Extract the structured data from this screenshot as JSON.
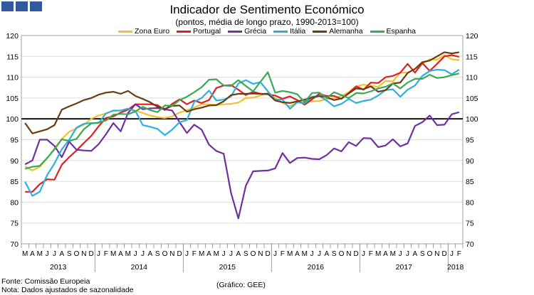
{
  "header": {
    "title": "Indicador de Sentimento Económico",
    "subtitle": "(pontos, média de longo prazo, 1990-2013=100)"
  },
  "footer": {
    "source": "Fonte: Comissão Europeia",
    "note": "Nota: Dados ajustados de sazonalidade",
    "credit": "(Gráfico: GEE)"
  },
  "chart_data": {
    "type": "line",
    "title": "Indicador de Sentimento Económico",
    "subtitle": "(pontos, média de longo prazo, 1990-2013=100)",
    "month_labels": [
      "M",
      "A",
      "M",
      "J",
      "J",
      "A",
      "S",
      "O",
      "N",
      "D",
      "J",
      "F",
      "M",
      "A",
      "M",
      "J",
      "J",
      "A",
      "S",
      "O",
      "N",
      "D",
      "J",
      "F",
      "M",
      "A",
      "M",
      "J",
      "J",
      "A",
      "S",
      "O",
      "N",
      "D",
      "J",
      "F",
      "M",
      "A",
      "M",
      "J",
      "J",
      "A",
      "S",
      "O",
      "N",
      "D",
      "J",
      "F",
      "M",
      "A",
      "M",
      "J",
      "J",
      "A",
      "S",
      "O",
      "N",
      "D",
      "J",
      "F"
    ],
    "year_labels": [
      {
        "label": "2013",
        "start": 0,
        "end": 9
      },
      {
        "label": "2014",
        "start": 10,
        "end": 21
      },
      {
        "label": "2015",
        "start": 22,
        "end": 33
      },
      {
        "label": "2016",
        "start": 34,
        "end": 45
      },
      {
        "label": "2017",
        "start": 46,
        "end": 57
      },
      {
        "label": "2018",
        "start": 58,
        "end": 59
      }
    ],
    "ylim": [
      70,
      120
    ],
    "yticks": [
      70,
      75,
      80,
      85,
      90,
      95,
      100,
      105,
      110,
      115,
      120
    ],
    "reference_line": 100,
    "legend_position": "top",
    "series": [
      {
        "name": "Zona Euro",
        "color": "#f2c12e",
        "values": [
          88.6,
          87.6,
          88.5,
          90.5,
          92.9,
          95.2,
          96.9,
          97.7,
          98.6,
          100.0,
          100.8,
          101.3,
          101.9,
          102.0,
          102.5,
          102.0,
          101.4,
          100.8,
          100.4,
          100.2,
          100.6,
          101.5,
          102.1,
          102.7,
          103.5,
          103.5,
          103.3,
          103.5,
          103.6,
          103.9,
          105.0,
          105.1,
          105.6,
          106.2,
          105.0,
          103.8,
          103.0,
          104.0,
          104.0,
          104.2,
          104.3,
          104.7,
          105.0,
          105.5,
          106.4,
          107.8,
          108.2,
          107.9,
          107.7,
          109.1,
          109.0,
          111.1,
          111.1,
          112.0,
          113.2,
          114.3,
          114.2,
          115.3,
          114.3,
          114.1
        ]
      },
      {
        "name": "Portugal",
        "color": "#e02020",
        "values": [
          82.5,
          82.5,
          84.3,
          85.5,
          85.4,
          89.0,
          90.8,
          92.4,
          94.2,
          95.9,
          98.2,
          100.2,
          100.6,
          101.5,
          102.2,
          103.5,
          103.5,
          103.5,
          103.3,
          102.1,
          103.6,
          104.7,
          103.5,
          104.4,
          103.8,
          104.5,
          107.4,
          108.0,
          108.1,
          107.0,
          105.7,
          106.5,
          106.0,
          105.9,
          105.6,
          104.8,
          105.4,
          104.5,
          103.4,
          104.7,
          106.0,
          105.5,
          105.5,
          104.8,
          106.2,
          107.8,
          107.0,
          108.7,
          108.6,
          110.0,
          110.3,
          111.1,
          113.2,
          111.1,
          113.4,
          111.5,
          113.2,
          115.0,
          115.3,
          114.9
        ]
      },
      {
        "name": "Grécia",
        "color": "#7030a0",
        "values": [
          89.1,
          90.0,
          95.0,
          95.0,
          93.5,
          90.8,
          94.5,
          92.6,
          92.4,
          92.3,
          93.9,
          96.3,
          99.0,
          97.0,
          101.4,
          103.5,
          102.3,
          102.5,
          102.6,
          102.3,
          102.0,
          99.2,
          96.6,
          98.6,
          97.4,
          93.8,
          92.3,
          91.6,
          82.2,
          76.1,
          83.9,
          87.4,
          87.5,
          87.6,
          88.1,
          91.8,
          89.4,
          90.6,
          90.7,
          90.4,
          90.3,
          91.3,
          92.9,
          92.2,
          94.4,
          93.5,
          95.4,
          95.3,
          93.2,
          93.6,
          95.1,
          93.4,
          94.1,
          98.3,
          99.2,
          100.8,
          98.5,
          98.6,
          101.1,
          101.6
        ]
      },
      {
        "name": "Itália",
        "color": "#2bb0e0",
        "values": [
          84.9,
          81.5,
          82.5,
          86.5,
          89.3,
          92.7,
          95.0,
          97.9,
          98.8,
          99.0,
          99.0,
          101.3,
          102.0,
          102.0,
          102.4,
          101.9,
          98.5,
          98.1,
          97.6,
          96.1,
          97.4,
          99.2,
          99.7,
          104.1,
          105.0,
          106.8,
          104.4,
          104.6,
          105.4,
          108.5,
          109.3,
          108.4,
          108.8,
          106.6,
          104.6,
          104.6,
          102.4,
          104.0,
          103.7,
          105.3,
          105.5,
          104.4,
          103.0,
          103.6,
          104.8,
          103.8,
          104.3,
          104.6,
          105.6,
          106.9,
          107.1,
          105.3,
          107.0,
          108.0,
          110.3,
          111.5,
          111.8,
          111.7,
          110.7,
          111.8
        ]
      },
      {
        "name": "Alemanha",
        "color": "#6b3b12",
        "values": [
          99.0,
          96.5,
          97.0,
          97.5,
          98.5,
          102.2,
          103.0,
          103.7,
          104.5,
          105.0,
          105.8,
          106.3,
          106.5,
          106.0,
          106.7,
          105.5,
          104.8,
          104.0,
          102.9,
          102.4,
          103.1,
          103.2,
          101.7,
          102.3,
          102.7,
          103.2,
          103.3,
          104.2,
          105.7,
          106.0,
          106.0,
          106.1,
          106.0,
          106.0,
          104.4,
          104.0,
          103.8,
          104.2,
          104.6,
          105.1,
          105.5,
          105.2,
          104.5,
          104.9,
          106.1,
          107.3,
          107.1,
          107.8,
          106.5,
          106.9,
          108.5,
          108.7,
          111.0,
          112.0,
          113.6,
          114.0,
          115.0,
          116.0,
          115.7,
          116.0
        ]
      },
      {
        "name": "Espanha",
        "color": "#3aa856",
        "values": [
          88.0,
          88.5,
          88.7,
          90.6,
          92.7,
          95.1,
          94.7,
          95.2,
          97.5,
          98.9,
          99.1,
          99.6,
          101.0,
          101.2,
          101.1,
          101.8,
          102.9,
          102.1,
          101.6,
          103.2,
          103.1,
          104.5,
          105.3,
          106.4,
          107.6,
          109.4,
          109.5,
          108.0,
          107.9,
          109.3,
          107.9,
          106.6,
          108.9,
          111.2,
          106.3,
          106.7,
          106.4,
          105.9,
          104.0,
          106.2,
          106.3,
          105.0,
          106.4,
          105.7,
          105.0,
          106.2,
          106.1,
          106.6,
          107.3,
          107.7,
          108.5,
          107.3,
          108.7,
          109.6,
          109.6,
          110.6,
          109.8,
          110.0,
          110.5,
          110.9
        ]
      }
    ]
  }
}
